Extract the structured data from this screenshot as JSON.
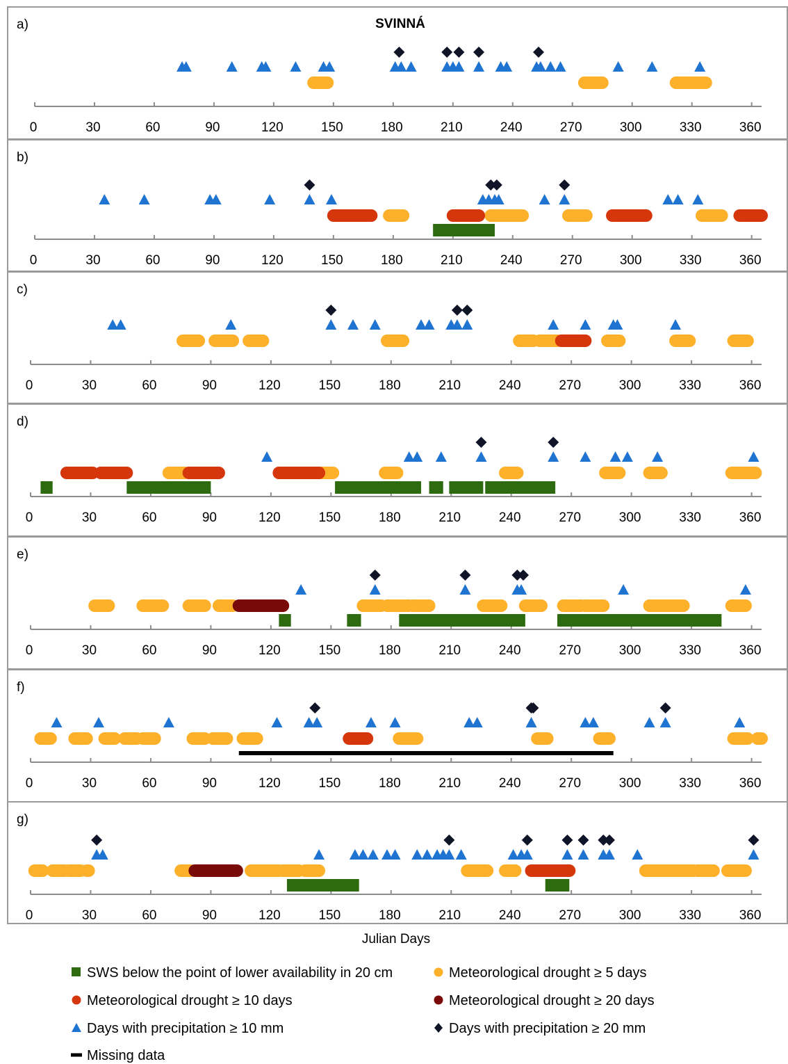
{
  "chart_data": {
    "type": "timeline",
    "title": "SVINNÁ",
    "xlabel": "Julian Days",
    "xlim": [
      0,
      365
    ],
    "ticks": [
      0,
      30,
      60,
      90,
      120,
      150,
      180,
      210,
      240,
      270,
      300,
      330,
      360
    ],
    "legend": {
      "placement": "bottom",
      "items": [
        {
          "key": "sws",
          "label": "SWS below the point of lower availability in 20 cm"
        },
        {
          "key": "d5",
          "label": "Meteorological drought ≥ 5 days"
        },
        {
          "key": "d10",
          "label": "Meteorological drought ≥ 10 days"
        },
        {
          "key": "d20",
          "label": "Meteorological drought ≥ 20 days"
        },
        {
          "key": "p10",
          "label": "Days with precipitation ≥ 10 mm"
        },
        {
          "key": "p20",
          "label": "Days with precipitation ≥ 20 mm"
        },
        {
          "key": "missing",
          "label": "Missing data"
        }
      ]
    },
    "colors": {
      "sws": "#2d6a10",
      "d5": "#fdb02a",
      "d10": "#d5360c",
      "d20": "#7a0a0a",
      "p10": "#1f74d2",
      "p20": "#0f1426",
      "missing": "#000000"
    },
    "panels": [
      {
        "label": "a)",
        "p20": [
          183,
          207,
          213,
          223,
          253
        ],
        "p10": [
          74,
          76,
          99,
          114,
          116,
          131,
          145,
          148,
          181,
          184,
          189,
          207,
          210,
          213,
          223,
          234,
          237,
          252,
          254,
          259,
          264,
          293,
          310,
          334
        ],
        "d5": [
          [
            140,
            147
          ],
          [
            276,
            285
          ],
          [
            322,
            337
          ]
        ],
        "d10": [],
        "d20": [],
        "sws": [],
        "missing": []
      },
      {
        "label": "b)",
        "p20": [
          138,
          229,
          232,
          266
        ],
        "p10": [
          35,
          55,
          88,
          91,
          118,
          138,
          149,
          225,
          228,
          231,
          233,
          256,
          266,
          318,
          323,
          333
        ],
        "d5": [
          [
            178,
            185
          ],
          [
            229,
            245
          ],
          [
            268,
            277
          ],
          [
            335,
            345
          ]
        ],
        "d10": [
          [
            150,
            169
          ],
          [
            210,
            223
          ],
          [
            290,
            307
          ],
          [
            354,
            365
          ]
        ],
        "d20": [],
        "sws": [
          [
            200,
            231
          ]
        ],
        "missing": []
      },
      {
        "label": "c)",
        "p20": [
          150,
          213,
          218
        ],
        "p10": [
          41,
          45,
          100,
          150,
          161,
          172,
          195,
          199,
          210,
          213,
          218,
          261,
          277,
          291,
          293,
          322
        ],
        "d5": [
          [
            76,
            84
          ],
          [
            92,
            101
          ],
          [
            109,
            116
          ],
          [
            178,
            186
          ],
          [
            244,
            251
          ],
          [
            254,
            263
          ],
          [
            288,
            294
          ],
          [
            322,
            329
          ],
          [
            351,
            358
          ]
        ],
        "d10": [
          [
            265,
            277
          ]
        ],
        "d20": [],
        "sws": [],
        "missing": []
      },
      {
        "label": "d)",
        "p20": [
          225,
          261
        ],
        "p10": [
          118,
          189,
          193,
          205,
          225,
          261,
          277,
          292,
          298,
          313,
          361
        ],
        "d5": [
          [
            69,
            77
          ],
          [
            145,
            151
          ],
          [
            177,
            183
          ],
          [
            237,
            243
          ],
          [
            287,
            294
          ],
          [
            309,
            315
          ],
          [
            350,
            362
          ]
        ],
        "d10": [
          [
            18,
            31
          ],
          [
            35,
            48
          ],
          [
            79,
            94
          ],
          [
            124,
            144
          ]
        ],
        "d20": [],
        "sws": [
          [
            5,
            11
          ],
          [
            48,
            90
          ],
          [
            152,
            195
          ],
          [
            199,
            206
          ],
          [
            209,
            226
          ],
          [
            227,
            262
          ]
        ],
        "missing": []
      },
      {
        "label": "e)",
        "p20": [
          172,
          217,
          243,
          246
        ],
        "p10": [
          135,
          172,
          217,
          243,
          245,
          296,
          357
        ],
        "d5": [
          [
            32,
            39
          ],
          [
            56,
            66
          ],
          [
            79,
            87
          ],
          [
            94,
            101
          ],
          [
            166,
            175
          ],
          [
            178,
            189
          ],
          [
            191,
            199
          ],
          [
            226,
            235
          ],
          [
            247,
            255
          ],
          [
            266,
            275
          ],
          [
            277,
            286
          ],
          [
            309,
            320
          ],
          [
            320,
            326
          ],
          [
            350,
            357
          ]
        ],
        "d10": [],
        "d20": [
          [
            104,
            126
          ]
        ],
        "sws": [
          [
            124,
            130
          ],
          [
            158,
            165
          ],
          [
            184,
            247
          ],
          [
            263,
            345
          ]
        ],
        "missing": []
      },
      {
        "label": "f)",
        "p20": [
          142,
          250,
          251,
          317
        ],
        "p10": [
          13,
          34,
          69,
          123,
          139,
          143,
          170,
          182,
          219,
          223,
          250,
          277,
          281,
          309,
          317,
          354
        ],
        "d5": [
          [
            5,
            10
          ],
          [
            22,
            28
          ],
          [
            37,
            42
          ],
          [
            47,
            53
          ],
          [
            56,
            62
          ],
          [
            81,
            87
          ],
          [
            91,
            98
          ],
          [
            106,
            113
          ],
          [
            184,
            193
          ],
          [
            253,
            258
          ],
          [
            284,
            289
          ],
          [
            351,
            358
          ],
          [
            363,
            365
          ]
        ],
        "d10": [
          [
            159,
            168
          ]
        ],
        "d20": [],
        "sws": [],
        "missing": [
          [
            104,
            291
          ]
        ]
      },
      {
        "label": "g)",
        "p20": [
          33,
          209,
          248,
          268,
          276,
          286,
          289,
          361
        ],
        "p10": [
          33,
          36,
          144,
          162,
          166,
          171,
          178,
          182,
          193,
          198,
          203,
          206,
          209,
          215,
          241,
          245,
          248,
          268,
          276,
          286,
          289,
          303,
          361
        ],
        "d5": [
          [
            2,
            6
          ],
          [
            11,
            17
          ],
          [
            19,
            25
          ],
          [
            28,
            29
          ],
          [
            75,
            80
          ],
          [
            110,
            124
          ],
          [
            126,
            134
          ],
          [
            137,
            144
          ],
          [
            218,
            228
          ],
          [
            237,
            242
          ],
          [
            307,
            322
          ],
          [
            323,
            331
          ],
          [
            333,
            341
          ],
          [
            348,
            357
          ]
        ],
        "d10": [
          [
            250,
            269
          ]
        ],
        "d20": [
          [
            82,
            103
          ]
        ],
        "sws": [
          [
            128,
            164
          ],
          [
            257,
            269
          ]
        ],
        "missing": []
      }
    ]
  }
}
